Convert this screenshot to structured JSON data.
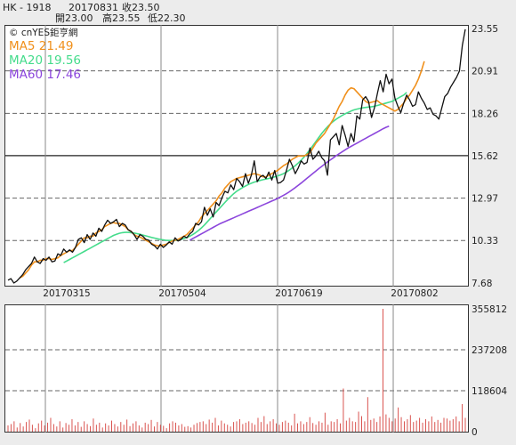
{
  "header": {
    "symbol": "HK - 1918",
    "date": "20170831",
    "close_label": "收23.50",
    "open_label": "開23.00",
    "high_label": "高23.55",
    "low_label": "低22.30",
    "watermark": "© cnYES鉅亨網"
  },
  "colors": {
    "price": "#111111",
    "ma5": "#f0901c",
    "ma20": "#45dc8c",
    "ma60": "#8c46dc",
    "volume": "#d9534f"
  },
  "chart_data": [
    {
      "type": "line",
      "y_ticks": [
        23.55,
        20.91,
        18.26,
        15.62,
        12.97,
        10.33,
        7.68
      ],
      "x_ticks": [
        "20170315",
        "20170504",
        "20170619",
        "20170802"
      ],
      "ylim": [
        7.68,
        23.55
      ],
      "legend": [
        {
          "label": "MA5 21.49",
          "color": "#f0901c"
        },
        {
          "label": "MA20 19.56",
          "color": "#45dc8c"
        },
        {
          "label": "MA60 17.46",
          "color": "#8c46dc"
        }
      ],
      "series": [
        {
          "name": "price",
          "color": "#111111",
          "values": [
            7.86,
            7.95,
            7.68,
            7.8,
            8.0,
            8.2,
            8.5,
            8.7,
            8.9,
            9.3,
            9.0,
            8.9,
            9.2,
            9.1,
            9.3,
            9.0,
            9.05,
            9.5,
            9.4,
            9.8,
            9.6,
            9.75,
            9.6,
            9.9,
            10.4,
            10.5,
            10.2,
            10.7,
            10.4,
            10.8,
            10.6,
            11.1,
            10.9,
            11.3,
            11.6,
            11.4,
            11.5,
            11.65,
            11.2,
            11.4,
            11.3,
            11.0,
            10.9,
            10.7,
            10.4,
            10.7,
            10.6,
            10.4,
            10.35,
            10.1,
            10.0,
            9.8,
            10.1,
            9.9,
            10.05,
            10.25,
            10.1,
            10.5,
            10.3,
            10.4,
            10.6,
            10.5,
            10.75,
            10.9,
            11.4,
            11.3,
            11.5,
            12.4,
            11.9,
            12.3,
            11.8,
            12.7,
            12.5,
            13.0,
            13.4,
            13.3,
            13.8,
            13.5,
            14.2,
            14.0,
            13.7,
            14.5,
            13.9,
            14.4,
            15.3,
            14.0,
            14.3,
            14.4,
            14.2,
            14.6,
            14.1,
            14.7,
            13.9,
            13.95,
            14.1,
            14.7,
            15.4,
            15.0,
            14.5,
            14.85,
            15.3,
            15.1,
            15.2,
            16.1,
            15.4,
            15.6,
            15.9,
            15.5,
            15.3,
            14.4,
            16.6,
            16.8,
            17.0,
            16.3,
            17.5,
            16.9,
            16.2,
            17.0,
            16.5,
            18.1,
            17.9,
            19.1,
            19.3,
            19.0,
            18.0,
            18.6,
            19.5,
            20.3,
            19.6,
            20.7,
            20.1,
            20.4,
            19.2,
            18.7,
            18.3,
            18.9,
            19.4,
            19.1,
            18.7,
            18.8,
            19.6,
            19.2,
            18.9,
            18.5,
            18.6,
            18.2,
            18.1,
            17.9,
            18.6,
            19.3,
            19.5,
            19.9,
            20.2,
            20.5,
            20.9,
            22.5,
            23.5
          ]
        },
        {
          "name": "MA5",
          "color": "#f0901c",
          "values": [
            null,
            null,
            null,
            null,
            8.0,
            8.1,
            8.3,
            8.5,
            8.8,
            9.0,
            9.0,
            9.1,
            9.1,
            9.2,
            9.2,
            9.15,
            9.2,
            9.25,
            9.4,
            9.5,
            9.6,
            9.7,
            9.7,
            9.9,
            10.1,
            10.3,
            10.5,
            10.5,
            10.6,
            10.6,
            10.8,
            10.9,
            11.0,
            11.2,
            11.3,
            11.4,
            11.45,
            11.4,
            11.4,
            11.3,
            11.2,
            11.0,
            10.9,
            10.7,
            10.6,
            10.55,
            10.45,
            10.35,
            10.25,
            10.15,
            10.05,
            10.0,
            10.0,
            10.05,
            10.1,
            10.2,
            10.3,
            10.35,
            10.4,
            10.5,
            10.6,
            10.7,
            10.9,
            11.1,
            11.3,
            11.5,
            11.8,
            12.0,
            12.2,
            12.4,
            12.6,
            12.8,
            13.1,
            13.3,
            13.6,
            13.8,
            14.0,
            14.1,
            14.2,
            14.25,
            14.3,
            14.35,
            14.4,
            14.45,
            14.5,
            14.45,
            14.4,
            14.3,
            14.3,
            14.4,
            14.5,
            14.6,
            14.7,
            14.85,
            15.0,
            15.1,
            15.25,
            15.4,
            15.5,
            15.6,
            15.6,
            15.6,
            15.7,
            15.8,
            16.1,
            16.4,
            16.6,
            16.8,
            17.0,
            17.3,
            17.6,
            17.9,
            18.3,
            18.7,
            19.0,
            19.4,
            19.7,
            19.85,
            19.8,
            19.6,
            19.4,
            19.2,
            19.0,
            18.9,
            18.95,
            19.0,
            19.05,
            18.9,
            18.8,
            18.7,
            18.6,
            18.5,
            18.4,
            18.5,
            18.7,
            18.9,
            19.2,
            19.4,
            19.7,
            20.0,
            20.4,
            20.9,
            21.5
          ]
        },
        {
          "name": "MA20",
          "color": "#45dc8c",
          "values": [
            null,
            null,
            null,
            null,
            null,
            null,
            null,
            null,
            null,
            null,
            null,
            null,
            null,
            null,
            null,
            null,
            null,
            null,
            null,
            8.95,
            9.05,
            9.15,
            9.25,
            9.35,
            9.45,
            9.55,
            9.65,
            9.75,
            9.85,
            9.95,
            10.05,
            10.15,
            10.25,
            10.35,
            10.45,
            10.55,
            10.65,
            10.72,
            10.78,
            10.82,
            10.84,
            10.84,
            10.82,
            10.8,
            10.76,
            10.72,
            10.67,
            10.62,
            10.57,
            10.52,
            10.48,
            10.44,
            10.4,
            10.37,
            10.34,
            10.33,
            10.33,
            10.34,
            10.36,
            10.4,
            10.45,
            10.52,
            10.6,
            10.7,
            10.82,
            10.96,
            11.12,
            11.3,
            11.5,
            11.7,
            11.9,
            12.1,
            12.3,
            12.5,
            12.7,
            12.9,
            13.08,
            13.25,
            13.4,
            13.52,
            13.63,
            13.73,
            13.82,
            13.9,
            13.97,
            14.03,
            14.08,
            14.12,
            14.16,
            14.2,
            14.25,
            14.3,
            14.36,
            14.42,
            14.5,
            14.6,
            14.72,
            14.86,
            15.0,
            15.16,
            15.34,
            15.54,
            15.76,
            16.0,
            16.25,
            16.5,
            16.75,
            17.0,
            17.22,
            17.42,
            17.6,
            17.76,
            17.9,
            18.02,
            18.13,
            18.23,
            18.32,
            18.4,
            18.47,
            18.52,
            18.56,
            18.6,
            18.63,
            18.65,
            18.67,
            18.7,
            18.75,
            18.8,
            18.85,
            18.9,
            18.95,
            19.0,
            19.1,
            19.2,
            19.3,
            19.4,
            19.56
          ]
        },
        {
          "name": "MA60",
          "color": "#8c46dc",
          "values": [
            null,
            null,
            null,
            null,
            null,
            null,
            null,
            null,
            null,
            null,
            null,
            null,
            null,
            null,
            null,
            null,
            null,
            null,
            null,
            null,
            null,
            null,
            null,
            null,
            null,
            null,
            null,
            null,
            null,
            null,
            null,
            null,
            null,
            null,
            null,
            null,
            null,
            null,
            null,
            null,
            null,
            null,
            null,
            null,
            null,
            null,
            null,
            null,
            null,
            null,
            null,
            null,
            null,
            null,
            null,
            null,
            null,
            null,
            null,
            null,
            null,
            null,
            10.35,
            10.45,
            10.55,
            10.65,
            10.75,
            10.85,
            10.95,
            11.05,
            11.15,
            11.25,
            11.35,
            11.43,
            11.51,
            11.59,
            11.67,
            11.75,
            11.83,
            11.91,
            11.99,
            12.07,
            12.15,
            12.23,
            12.31,
            12.39,
            12.47,
            12.55,
            12.63,
            12.71,
            12.79,
            12.87,
            12.95,
            13.05,
            13.15,
            13.25,
            13.37,
            13.5,
            13.63,
            13.77,
            13.91,
            14.06,
            14.21,
            14.36,
            14.51,
            14.66,
            14.81,
            14.95,
            15.09,
            15.23,
            15.36,
            15.49,
            15.62,
            15.74,
            15.86,
            15.98,
            16.1,
            16.2,
            16.3,
            16.4,
            16.5,
            16.6,
            16.7,
            16.8,
            16.9,
            17.0,
            17.1,
            17.2,
            17.3,
            17.39,
            17.46
          ]
        }
      ]
    },
    {
      "type": "bar",
      "y_ticks": [
        355812,
        237208,
        118604,
        0
      ],
      "ylim": [
        0,
        355812
      ],
      "series": [
        {
          "name": "volume",
          "color": "#d9534f",
          "values": [
            18000,
            22000,
            30000,
            12000,
            25000,
            15000,
            28000,
            35000,
            20000,
            10000,
            24000,
            32000,
            18000,
            26000,
            40000,
            22000,
            15000,
            30000,
            12000,
            25000,
            20000,
            36000,
            18000,
            28000,
            14000,
            30000,
            22000,
            16000,
            38000,
            20000,
            26000,
            12000,
            24000,
            18000,
            32000,
            22000,
            15000,
            28000,
            20000,
            35000,
            16000,
            24000,
            30000,
            18000,
            12000,
            26000,
            22000,
            34000,
            15000,
            28000,
            20000,
            17000,
            10000,
            24000,
            30000,
            26000,
            18000,
            22000,
            14000,
            16000,
            12000,
            20000,
            25000,
            28000,
            30000,
            22000,
            35000,
            26000,
            40000,
            18000,
            32000,
            24000,
            20000,
            15000,
            28000,
            30000,
            36000,
            22000,
            26000,
            30000,
            25000,
            20000,
            40000,
            28000,
            45000,
            22000,
            30000,
            36000,
            24000,
            20000,
            28000,
            32000,
            26000,
            18000,
            52000,
            24000,
            30000,
            22000,
            28000,
            42000,
            25000,
            20000,
            30000,
            26000,
            55000,
            20000,
            30000,
            28000,
            36000,
            24000,
            125000,
            32000,
            40000,
            30000,
            28000,
            58000,
            45000,
            30000,
            100000,
            34000,
            38000,
            28000,
            44000,
            355812,
            50000,
            40000,
            30000,
            38000,
            70000,
            42000,
            30000,
            36000,
            48000,
            28000,
            32000,
            40000,
            26000,
            36000,
            30000,
            44000,
            28000,
            34000,
            26000,
            40000,
            38000,
            32000,
            36000,
            44000,
            30000,
            80000,
            40000
          ]
        }
      ]
    }
  ]
}
